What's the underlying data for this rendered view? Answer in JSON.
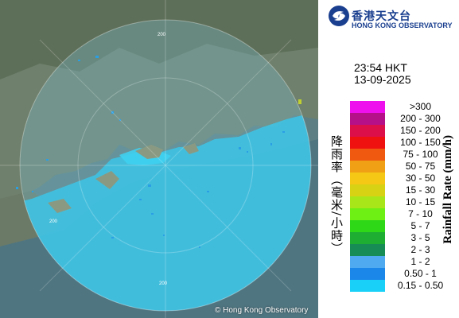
{
  "logo": {
    "name_zh": "香港天文台",
    "name_en": "HONG KONG OBSERVATORY",
    "color": "#1a3f8f"
  },
  "time": "23:54 HKT",
  "date": "13-09-2025",
  "range_rings": {
    "label_left": "200",
    "label_bottom": "200",
    "label_top": "200"
  },
  "legend": {
    "title_zh": "降雨率（毫米/小時）",
    "title_en": "Rainfall Rate (mm/h)",
    "items": [
      {
        "label": ">300",
        "color": "#ee11ee"
      },
      {
        "label": "200 - 300",
        "color": "#b5108a"
      },
      {
        "label": "150 - 200",
        "color": "#dd0f4a"
      },
      {
        "label": "100 - 150",
        "color": "#ef1010"
      },
      {
        "label": "75 - 100",
        "color": "#f05a10"
      },
      {
        "label": "50 - 75",
        "color": "#f0a015"
      },
      {
        "label": "30 - 50",
        "color": "#f5c815"
      },
      {
        "label": "15 - 30",
        "color": "#d8d215"
      },
      {
        "label": "10 - 15",
        "color": "#a8e61a"
      },
      {
        "label": "7 - 10",
        "color": "#6ef015"
      },
      {
        "label": "5 - 7",
        "color": "#2fd817"
      },
      {
        "label": "3 - 5",
        "color": "#1eae32"
      },
      {
        "label": "2 - 3",
        "color": "#178c54"
      },
      {
        "label": "1 - 2",
        "color": "#50aaf0"
      },
      {
        "label": "0.50 - 1",
        "color": "#1b87e8"
      },
      {
        "label": "0.15 - 0.50",
        "color": "#18d0f8"
      }
    ]
  },
  "copyright": "© Hong Kong Observatory"
}
